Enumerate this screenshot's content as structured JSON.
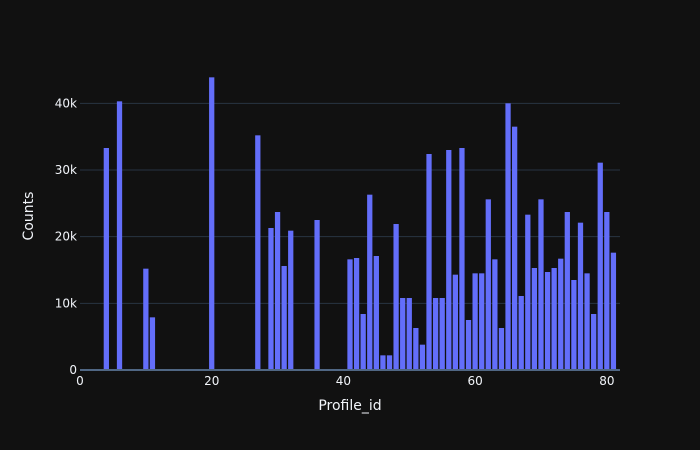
{
  "chart_data": {
    "type": "bar",
    "xlabel": "Profile_id",
    "ylabel": "Counts",
    "xlim": [
      0,
      82
    ],
    "ylim": [
      0,
      46500
    ],
    "x_ticks": [
      0,
      20,
      40,
      60,
      80
    ],
    "x_tick_labels": [
      "0",
      "20",
      "40",
      "60",
      "80"
    ],
    "y_ticks": [
      0,
      10000,
      20000,
      30000,
      40000
    ],
    "y_tick_labels": [
      "0",
      "10k",
      "20k",
      "30k",
      "40k"
    ],
    "grid": true,
    "bar_color": "#636efa",
    "background": "#111111",
    "x": [
      4,
      6,
      10,
      11,
      20,
      27,
      29,
      30,
      31,
      32,
      36,
      41,
      42,
      43,
      44,
      45,
      46,
      47,
      48,
      49,
      50,
      51,
      52,
      53,
      54,
      55,
      56,
      57,
      58,
      59,
      60,
      61,
      62,
      63,
      64,
      65,
      66,
      67,
      68,
      69,
      70,
      71,
      72,
      73,
      74,
      75,
      76,
      77,
      78,
      79,
      80,
      81
    ],
    "values": [
      33300,
      40300,
      15200,
      7900,
      43900,
      35200,
      21300,
      23700,
      15600,
      20900,
      22500,
      16600,
      16800,
      8400,
      26300,
      17100,
      2200,
      2200,
      21900,
      10800,
      10800,
      6300,
      3800,
      32400,
      10800,
      10800,
      33000,
      14300,
      33300,
      7500,
      14500,
      14500,
      25600,
      16600,
      6300,
      40000,
      36500,
      11100,
      23300,
      15300,
      25600,
      14700,
      15300,
      16700,
      23700,
      13500,
      22100,
      14500,
      8400,
      31100,
      23700,
      17600
    ]
  }
}
